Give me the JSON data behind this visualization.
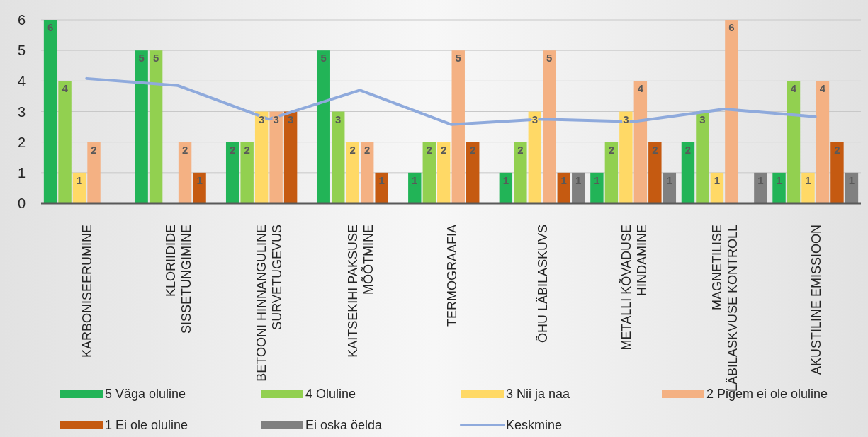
{
  "chart_data": {
    "type": "bar",
    "categories": [
      "KARBONISEERUMINE",
      "KLORIIDIDE SISSETUNGIMINE",
      "BETOONI HINNANGULINE SURVETUGEVUS",
      "KAITSEKIHI PAKSUSE MÕÕTMINE",
      "TERMOGRAAFIA",
      "ÕHU LÄBILASKUVS",
      "METALLI KÕVADUSE HINDAMINE",
      "MAGNETILISE LÄBILASKVUSE KONTROLL",
      "AKUSTILINE EMISSIOON"
    ],
    "series": [
      {
        "name": "5 Väga oluline",
        "color": "#22b457",
        "data_labels": true,
        "values": [
          6,
          5,
          2,
          5,
          1,
          1,
          1,
          2,
          1
        ]
      },
      {
        "name": "4 Oluline",
        "color": "#92d050",
        "data_labels": true,
        "values": [
          4,
          5,
          2,
          3,
          2,
          2,
          2,
          3,
          4
        ]
      },
      {
        "name": "3 Nii ja naa",
        "color": "#ffd966",
        "data_labels": true,
        "values": [
          1,
          null,
          3,
          2,
          2,
          3,
          3,
          1,
          1
        ]
      },
      {
        "name": "2 Pigem ei ole oluline",
        "color": "#f4b183",
        "data_labels": true,
        "values": [
          2,
          2,
          3,
          2,
          5,
          5,
          4,
          6,
          4
        ]
      },
      {
        "name": "1 Ei ole oluline",
        "color": "#c55a11",
        "data_labels": true,
        "values": [
          null,
          1,
          3,
          1,
          2,
          1,
          2,
          null,
          2
        ]
      },
      {
        "name": "Ei oska öelda",
        "color": "#808080",
        "data_labels": true,
        "values": [
          null,
          null,
          null,
          null,
          null,
          1,
          1,
          1,
          1
        ]
      },
      {
        "name": "Keskmine",
        "type": "line",
        "color": "#8faadc",
        "values": [
          4.08,
          3.85,
          2.75,
          3.7,
          2.58,
          2.75,
          2.67,
          3.08,
          2.83
        ]
      }
    ],
    "ylim": [
      0,
      6
    ],
    "yticks": [
      0,
      1,
      2,
      3,
      4,
      5,
      6
    ],
    "grid": "y",
    "legend": "bottom"
  }
}
